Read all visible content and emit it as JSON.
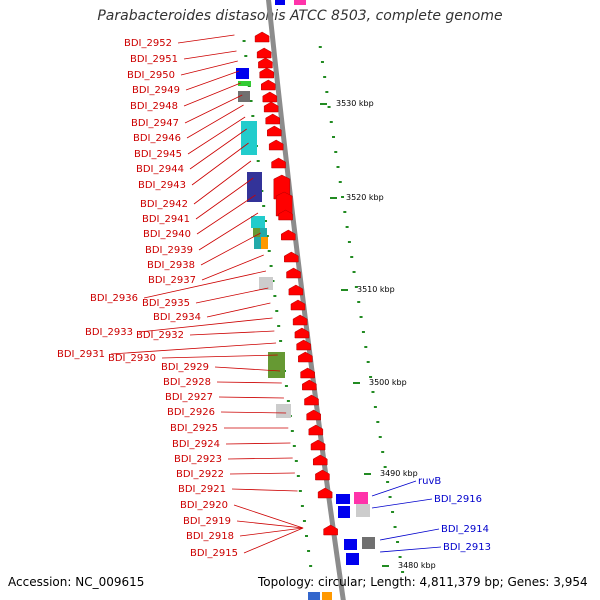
{
  "title": "Parabacteroides distasonis ATCC 8503, complete genome",
  "footer": {
    "accession": "Accession: NC_009615",
    "topology": "Topology: circular; Length: 4,811,379 bp; Genes: 3,954"
  },
  "colors": {
    "backbone": "#8c8c8c",
    "forward_gene": "#ff0000",
    "label_red": "#cc0000",
    "label_blue": "#0000cc",
    "tick": "#228b22"
  },
  "ruler_labels": [
    "3530 kbp",
    "3520 kbp",
    "3510 kbp",
    "3500 kbp",
    "3490 kbp",
    "3480 kbp"
  ],
  "left_genes": [
    "BDI_2952",
    "BDI_2951",
    "BDI_2950",
    "BDI_2949",
    "BDI_2948",
    "BDI_2947",
    "BDI_2946",
    "BDI_2945",
    "BDI_2944",
    "BDI_2943",
    "BDI_2942",
    "BDI_2941",
    "BDI_2940",
    "BDI_2939",
    "BDI_2938",
    "BDI_2937",
    "BDI_2936",
    "BDI_2935",
    "BDI_2934",
    "BDI_2933",
    "BDI_2932",
    "BDI_2931",
    "BDI_2930",
    "BDI_2929",
    "BDI_2928",
    "BDI_2927",
    "BDI_2926",
    "BDI_2925",
    "BDI_2924",
    "BDI_2923",
    "BDI_2922",
    "BDI_2921",
    "BDI_2920",
    "BDI_2919",
    "BDI_2918",
    "BDI_2915"
  ],
  "right_genes": [
    "ruvB",
    "BDI_2916",
    "BDI_2914",
    "BDI_2913"
  ]
}
